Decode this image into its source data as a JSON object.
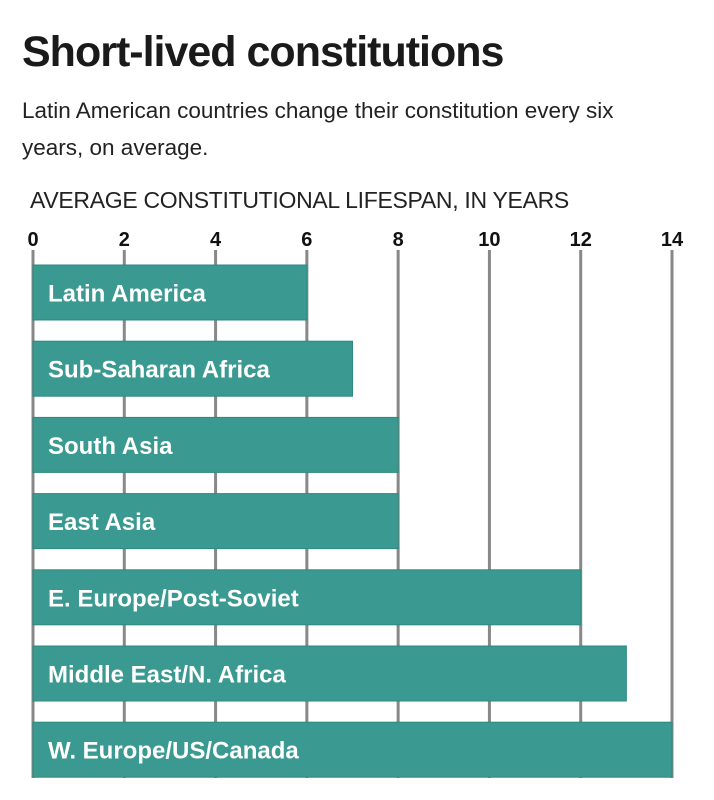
{
  "colors": {
    "bar": "#3a9990",
    "bar_edge": "#2c8a80",
    "grid": "#888888"
  },
  "chart_data": {
    "type": "bar",
    "orientation": "horizontal",
    "title": "Short-lived constitutions",
    "subtitle": "Latin American countries change their constitution every six years, on average.",
    "xlabel": "AVERAGE CONSTITUTIONAL LIFESPAN, IN YEARS",
    "ylabel": "",
    "xlim": [
      0,
      14
    ],
    "xticks": [
      "0",
      "2",
      "4",
      "6",
      "8",
      "10",
      "12",
      "14"
    ],
    "grid": true,
    "categories": [
      "Latin America",
      "Sub-Saharan Africa",
      "South Asia",
      "East Asia",
      "E. Europe/Post-Soviet",
      "Middle East/N. Africa",
      "W. Europe/US/Canada"
    ],
    "values": [
      6,
      7,
      8,
      8,
      12,
      13,
      14
    ]
  }
}
